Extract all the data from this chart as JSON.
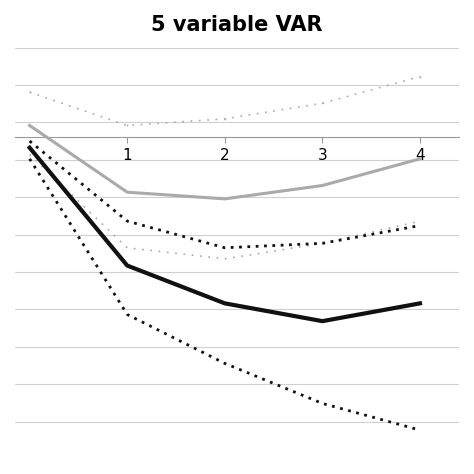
{
  "title": "5 variable VAR",
  "title_fontsize": 15,
  "title_fontweight": "bold",
  "x": [
    0,
    1,
    2,
    3,
    4
  ],
  "gray_solid": [
    0.05,
    -0.25,
    -0.28,
    -0.22,
    -0.1
  ],
  "gray_dot_upper": [
    0.2,
    0.05,
    0.08,
    0.15,
    0.27
  ],
  "gray_dot_lower": [
    -0.08,
    -0.5,
    -0.55,
    -0.48,
    -0.38
  ],
  "black_dot_upper": [
    -0.02,
    -0.38,
    -0.5,
    -0.48,
    -0.4
  ],
  "black_solid": [
    -0.05,
    -0.58,
    -0.75,
    -0.83,
    -0.75
  ],
  "black_dot_lower": [
    -0.1,
    -0.8,
    -1.02,
    -1.2,
    -1.32
  ],
  "xlim": [
    -0.15,
    4.4
  ],
  "ylim": [
    -1.45,
    0.4
  ],
  "xaxis_y": 0.0,
  "xticks": [
    1,
    2,
    3,
    4
  ],
  "num_hgrid": 12,
  "gray_solid_color": "#aaaaaa",
  "gray_dot_color": "#aaaaaa",
  "black_solid_color": "#111111",
  "black_dot_color": "#111111",
  "bg_color": "#ffffff",
  "grid_color": "#d0d0d0"
}
